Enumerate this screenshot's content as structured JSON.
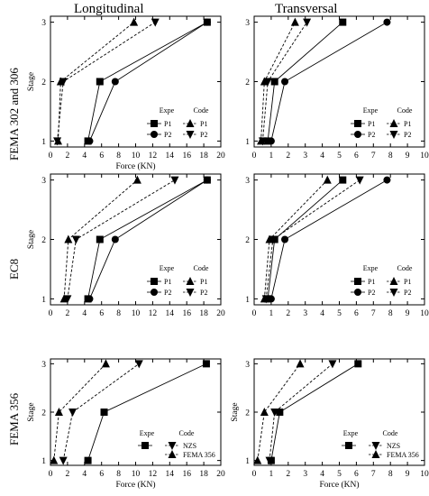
{
  "figure": {
    "column_titles": [
      "Longitudinal",
      "Transversal"
    ],
    "row_titles": [
      "FEMA 302 and 306",
      "EC8",
      "FEMA 356"
    ]
  },
  "chart_data": [
    {
      "type": "line",
      "panel": "FEMA 302 and 306 / Longitudinal",
      "xlabel": "Force (KN)",
      "ylabel": "Stage",
      "xlim": [
        0,
        20
      ],
      "ylim": [
        0.9,
        3.1
      ],
      "xticks": [
        "0",
        "2",
        "4",
        "6",
        "8",
        "10",
        "12",
        "14",
        "16",
        "18",
        "20"
      ],
      "yticks": [
        "1",
        "2",
        "3"
      ],
      "legend": {
        "placement": "bottom-right",
        "headers": [
          "Expe",
          "Code"
        ],
        "labels": [
          "P1",
          "P2",
          "P1",
          "P2"
        ]
      },
      "series": [
        {
          "group": "Expe",
          "name": "P1",
          "marker": "square",
          "dash": "solid",
          "points": [
            [
              4.4,
              1
            ],
            [
              5.8,
              2
            ],
            [
              18.4,
              3
            ]
          ]
        },
        {
          "group": "Expe",
          "name": "P2",
          "marker": "circle",
          "dash": "solid",
          "points": [
            [
              4.6,
              1
            ],
            [
              7.6,
              2
            ],
            [
              18.4,
              3
            ]
          ]
        },
        {
          "group": "Code",
          "name": "P1",
          "marker": "triangle-up",
          "dash": "dashed",
          "points": [
            [
              0.9,
              1
            ],
            [
              1.2,
              2
            ],
            [
              9.8,
              3
            ]
          ]
        },
        {
          "group": "Code",
          "name": "P2",
          "marker": "triangle-down",
          "dash": "dashed",
          "points": [
            [
              0.8,
              1
            ],
            [
              1.5,
              2
            ],
            [
              12.3,
              3
            ]
          ]
        }
      ]
    },
    {
      "type": "line",
      "panel": "FEMA 302 and 306 / Transversal",
      "xlabel": "",
      "ylabel": "",
      "xlim": [
        0,
        10
      ],
      "ylim": [
        0.9,
        3.1
      ],
      "xticks": [
        "0",
        "1",
        "2",
        "3",
        "4",
        "5",
        "6",
        "7",
        "8",
        "9",
        "10"
      ],
      "yticks": [
        "1",
        "2",
        "3"
      ],
      "legend": {
        "placement": "bottom-right",
        "headers": [
          "Expe",
          "Code"
        ],
        "labels": [
          "P1",
          "P2",
          "P1",
          "P2"
        ]
      },
      "series": [
        {
          "group": "Expe",
          "name": "P1",
          "marker": "square",
          "dash": "solid",
          "points": [
            [
              0.8,
              1
            ],
            [
              1.2,
              2
            ],
            [
              5.2,
              3
            ]
          ]
        },
        {
          "group": "Expe",
          "name": "P2",
          "marker": "circle",
          "dash": "solid",
          "points": [
            [
              1.0,
              1
            ],
            [
              1.8,
              2
            ],
            [
              7.8,
              3
            ]
          ]
        },
        {
          "group": "Code",
          "name": "P1",
          "marker": "triangle-up",
          "dash": "dashed",
          "points": [
            [
              0.4,
              1
            ],
            [
              0.6,
              2
            ],
            [
              2.4,
              3
            ]
          ]
        },
        {
          "group": "Code",
          "name": "P2",
          "marker": "triangle-down",
          "dash": "dashed",
          "points": [
            [
              0.5,
              1
            ],
            [
              0.8,
              2
            ],
            [
              3.1,
              3
            ]
          ]
        }
      ]
    },
    {
      "type": "line",
      "panel": "EC8 / Longitudinal",
      "xlabel": "",
      "ylabel": "Stage",
      "xlim": [
        0,
        20
      ],
      "ylim": [
        0.9,
        3.1
      ],
      "xticks": [
        "0",
        "2",
        "4",
        "6",
        "8",
        "10",
        "12",
        "14",
        "16",
        "18",
        "20"
      ],
      "yticks": [
        "1",
        "2",
        "3"
      ],
      "legend": {
        "placement": "bottom-right",
        "headers": [
          "Expe",
          "Code"
        ],
        "labels": [
          "P1",
          "P2",
          "P1",
          "P2"
        ]
      },
      "series": [
        {
          "group": "Expe",
          "name": "P1",
          "marker": "square",
          "dash": "solid",
          "points": [
            [
              4.4,
              1
            ],
            [
              5.8,
              2
            ],
            [
              18.4,
              3
            ]
          ]
        },
        {
          "group": "Expe",
          "name": "P2",
          "marker": "circle",
          "dash": "solid",
          "points": [
            [
              4.6,
              1
            ],
            [
              7.6,
              2
            ],
            [
              18.4,
              3
            ]
          ]
        },
        {
          "group": "Code",
          "name": "P1",
          "marker": "triangle-up",
          "dash": "dashed",
          "points": [
            [
              1.6,
              1
            ],
            [
              2.1,
              2
            ],
            [
              10.2,
              3
            ]
          ]
        },
        {
          "group": "Code",
          "name": "P2",
          "marker": "triangle-down",
          "dash": "dashed",
          "points": [
            [
              2.0,
              1
            ],
            [
              3.0,
              2
            ],
            [
              14.6,
              3
            ]
          ]
        }
      ]
    },
    {
      "type": "line",
      "panel": "EC8 / Transversal",
      "xlabel": "",
      "ylabel": "",
      "xlim": [
        0,
        10
      ],
      "ylim": [
        0.9,
        3.1
      ],
      "xticks": [
        "0",
        "1",
        "2",
        "3",
        "4",
        "5",
        "6",
        "7",
        "8",
        "9",
        "10"
      ],
      "yticks": [
        "1",
        "2",
        "3"
      ],
      "legend": {
        "placement": "bottom-right",
        "headers": [
          "Expe",
          "Code"
        ],
        "labels": [
          "P1",
          "P2",
          "P1",
          "P2"
        ]
      },
      "series": [
        {
          "group": "Expe",
          "name": "P1",
          "marker": "square",
          "dash": "solid",
          "points": [
            [
              0.8,
              1
            ],
            [
              1.2,
              2
            ],
            [
              5.2,
              3
            ]
          ]
        },
        {
          "group": "Expe",
          "name": "P2",
          "marker": "circle",
          "dash": "solid",
          "points": [
            [
              1.0,
              1
            ],
            [
              1.8,
              2
            ],
            [
              7.8,
              3
            ]
          ]
        },
        {
          "group": "Code",
          "name": "P1",
          "marker": "triangle-up",
          "dash": "dashed",
          "points": [
            [
              0.6,
              1
            ],
            [
              0.9,
              2
            ],
            [
              4.3,
              3
            ]
          ]
        },
        {
          "group": "Code",
          "name": "P2",
          "marker": "triangle-down",
          "dash": "dashed",
          "points": [
            [
              0.7,
              1
            ],
            [
              1.1,
              2
            ],
            [
              6.2,
              3
            ]
          ]
        }
      ]
    },
    {
      "type": "line",
      "panel": "FEMA 356 / Longitudinal",
      "xlabel": "Force (KN)",
      "ylabel": "Stage",
      "xlim": [
        0,
        20
      ],
      "ylim": [
        0.9,
        3.1
      ],
      "xticks": [
        "0",
        "2",
        "4",
        "6",
        "8",
        "10",
        "12",
        "14",
        "16",
        "18",
        "20"
      ],
      "yticks": [
        "1",
        "2",
        "3"
      ],
      "legend": {
        "placement": "bottom-right",
        "headers": [
          "Expe",
          "Code"
        ],
        "labels": [
          "",
          "NZS",
          "FEMA 356"
        ]
      },
      "series": [
        {
          "group": "Expe",
          "name": "",
          "marker": "square",
          "dash": "solid",
          "points": [
            [
              4.4,
              1
            ],
            [
              6.3,
              2
            ],
            [
              18.3,
              3
            ]
          ]
        },
        {
          "group": "Code",
          "name": "NZS",
          "marker": "triangle-down",
          "dash": "dashed",
          "points": [
            [
              1.5,
              1
            ],
            [
              2.6,
              2
            ],
            [
              10.4,
              3
            ]
          ]
        },
        {
          "group": "Code",
          "name": "FEMA 356",
          "marker": "triangle-up",
          "dash": "dashed",
          "points": [
            [
              0.4,
              1
            ],
            [
              1.0,
              2
            ],
            [
              6.5,
              3
            ]
          ]
        }
      ]
    },
    {
      "type": "line",
      "panel": "FEMA 356 / Transversal",
      "xlabel": "Force (KN)",
      "ylabel": "Stage",
      "xlim": [
        0,
        10
      ],
      "ylim": [
        0.9,
        3.1
      ],
      "xticks": [
        "0",
        "1",
        "2",
        "3",
        "4",
        "5",
        "6",
        "7",
        "8",
        "9",
        "10"
      ],
      "yticks": [
        "1",
        "2",
        "3"
      ],
      "legend": {
        "placement": "bottom-right",
        "headers": [
          "Expe",
          "Code"
        ],
        "labels": [
          "",
          "NZS",
          "FEMA 356"
        ]
      },
      "series": [
        {
          "group": "Expe",
          "name": "",
          "marker": "square",
          "dash": "solid",
          "points": [
            [
              1.0,
              1
            ],
            [
              1.5,
              2
            ],
            [
              6.1,
              3
            ]
          ]
        },
        {
          "group": "Code",
          "name": "NZS",
          "marker": "triangle-down",
          "dash": "dashed",
          "points": [
            [
              0.9,
              1
            ],
            [
              1.2,
              2
            ],
            [
              4.6,
              3
            ]
          ]
        },
        {
          "group": "Code",
          "name": "FEMA 356",
          "marker": "triangle-up",
          "dash": "dashed",
          "points": [
            [
              0.2,
              1
            ],
            [
              0.6,
              2
            ],
            [
              2.7,
              3
            ]
          ]
        }
      ]
    }
  ]
}
